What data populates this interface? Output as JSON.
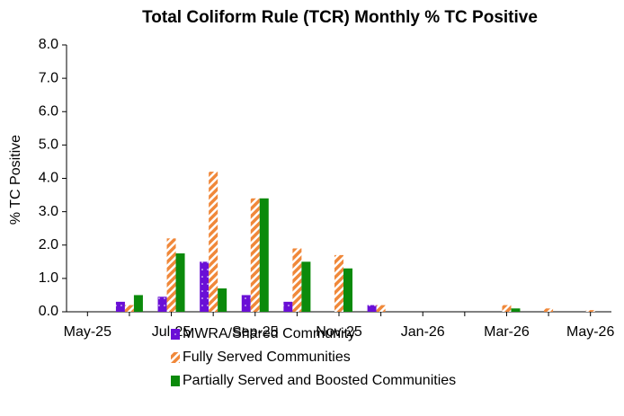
{
  "chart_data": {
    "type": "bar",
    "title": "Total Coliform Rule (TCR) Monthly % TC Positive",
    "y_label": "% TC Positive",
    "categories": [
      "May-25",
      null,
      "Jul-25",
      null,
      "Sep-25",
      null,
      "Nov-25",
      null,
      "Jan-26",
      null,
      "Mar-26",
      null,
      "May-26"
    ],
    "series": [
      {
        "name": "MWRA/Shared Community",
        "color": "#6a0fd6",
        "pattern": "dots",
        "values": [
          0,
          0.3,
          0.45,
          1.5,
          0.5,
          0.3,
          0,
          0.2,
          0,
          0,
          0,
          0,
          0
        ]
      },
      {
        "name": "Fully Served Communities",
        "color": "#f0883a",
        "pattern": "hatch",
        "values": [
          0,
          0.2,
          2.2,
          4.2,
          3.4,
          1.9,
          1.7,
          0.2,
          0,
          0,
          0.2,
          0.1,
          0.05
        ]
      },
      {
        "name": "Partially Served and Boosted Communities",
        "color": "#0b8a0b",
        "pattern": "solid",
        "values": [
          0,
          0.5,
          1.75,
          0.7,
          3.4,
          1.5,
          1.3,
          0,
          0,
          0,
          0.1,
          0,
          0
        ]
      }
    ],
    "ylim": [
      0,
      8
    ],
    "yticks": [
      {
        "value": 0,
        "label": "0.0"
      },
      {
        "value": 1,
        "label": "1.0"
      },
      {
        "value": 2,
        "label": "2.0"
      },
      {
        "value": 3,
        "label": "3.0"
      },
      {
        "value": 4,
        "label": "4.0"
      },
      {
        "value": 5,
        "label": "5.0"
      },
      {
        "value": 6,
        "label": "6.0"
      },
      {
        "value": 7,
        "label": "7.0"
      },
      {
        "value": 8,
        "label": "8.0"
      }
    ],
    "grid": false,
    "legend": "bottom"
  }
}
